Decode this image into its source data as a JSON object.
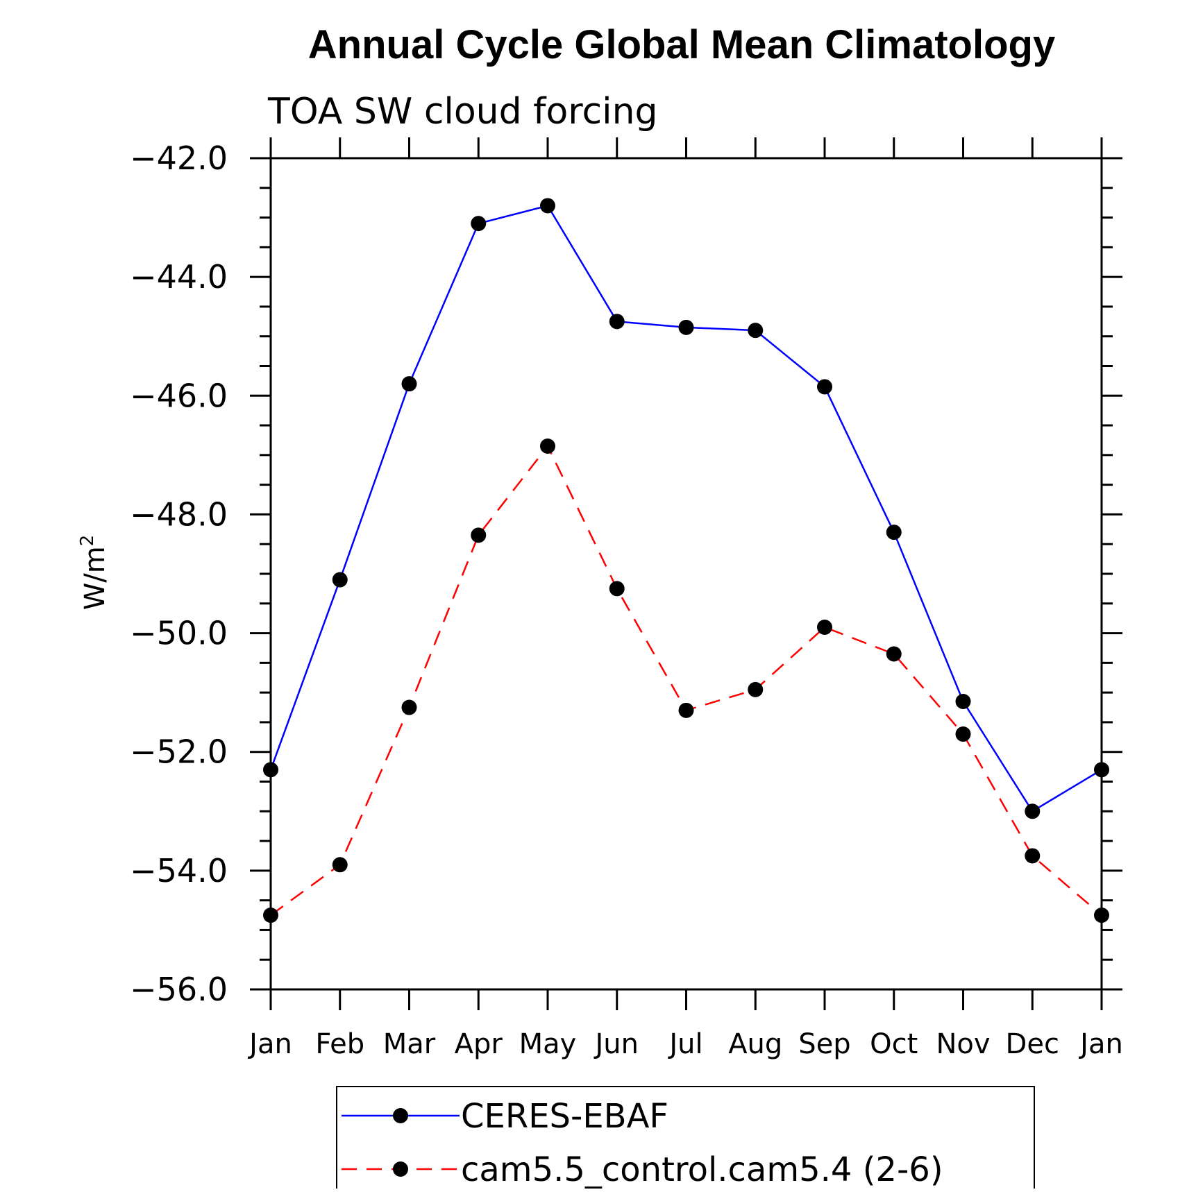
{
  "chart_data": {
    "type": "line",
    "title": "Annual Cycle Global Mean Climatology",
    "subtitle": "TOA SW cloud forcing",
    "ylabel": "W/m",
    "ylabel_superscript": "2",
    "xlabel": "",
    "categories": [
      "Jan",
      "Feb",
      "Mar",
      "Apr",
      "May",
      "Jun",
      "Jul",
      "Aug",
      "Sep",
      "Oct",
      "Nov",
      "Dec",
      "Jan"
    ],
    "ylim": [
      -56.0,
      -42.0
    ],
    "yticks": [
      "-42.0",
      "-44.0",
      "-46.0",
      "-48.0",
      "-50.0",
      "-52.0",
      "-54.0",
      "-56.0"
    ],
    "ytick_values": [
      -42.0,
      -44.0,
      -46.0,
      -48.0,
      -50.0,
      -52.0,
      -54.0,
      -56.0
    ],
    "grid": false,
    "legend_position": "bottom",
    "series": [
      {
        "name": "CERES-EBAF",
        "color": "#0000ff",
        "dash": "solid",
        "marker": "filled-circle",
        "values": [
          -52.3,
          -49.1,
          -45.8,
          -43.1,
          -42.8,
          -44.75,
          -44.85,
          -44.9,
          -45.85,
          -48.3,
          -51.15,
          -53.0,
          -52.3
        ]
      },
      {
        "name": "cam5.5_control.cam5.4 (2-6)",
        "color": "#ff0000",
        "dash": "dashed",
        "marker": "filled-circle",
        "values": [
          -54.75,
          -53.9,
          -51.25,
          -48.35,
          -46.85,
          -49.25,
          -51.3,
          -50.95,
          -49.9,
          -50.35,
          -51.7,
          -53.75,
          -54.75
        ]
      }
    ]
  }
}
